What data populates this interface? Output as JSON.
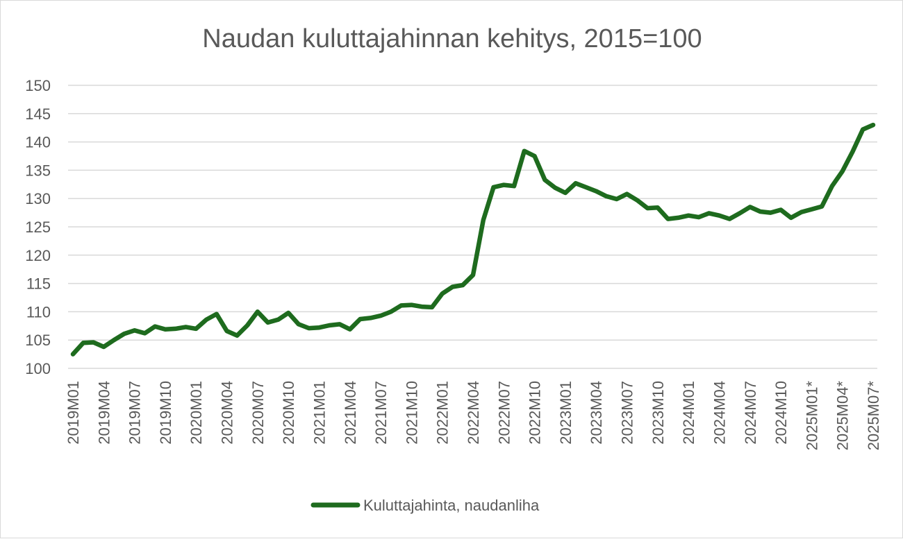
{
  "chart_data": {
    "type": "line",
    "title": "Naudan kuluttajahinnan kehitys, 2015=100",
    "xlabel": "",
    "ylabel": "",
    "ylim": [
      100,
      150
    ],
    "yticks": [
      100,
      105,
      110,
      115,
      120,
      125,
      130,
      135,
      140,
      145,
      150
    ],
    "grid": true,
    "legend_position": "bottom",
    "x": [
      "2019M01",
      "2019M02",
      "2019M03",
      "2019M04",
      "2019M05",
      "2019M06",
      "2019M07",
      "2019M08",
      "2019M09",
      "2019M10",
      "2019M11",
      "2019M12",
      "2020M01",
      "2020M02",
      "2020M03",
      "2020M04",
      "2020M05",
      "2020M06",
      "2020M07",
      "2020M08",
      "2020M09",
      "2020M10",
      "2020M11",
      "2020M12",
      "2021M01",
      "2021M02",
      "2021M03",
      "2021M04",
      "2021M05",
      "2021M06",
      "2021M07",
      "2021M08",
      "2021M09",
      "2021M10",
      "2021M11",
      "2021M12",
      "2022M01",
      "2022M02",
      "2022M03",
      "2022M04",
      "2022M05",
      "2022M06",
      "2022M07",
      "2022M08",
      "2022M09",
      "2022M10",
      "2022M11",
      "2022M12",
      "2023M01",
      "2023M02",
      "2023M03",
      "2023M04",
      "2023M05",
      "2023M06",
      "2023M07",
      "2023M08",
      "2023M09",
      "2023M10",
      "2023M11",
      "2023M12",
      "2024M01",
      "2024M02",
      "2024M03",
      "2024M04",
      "2024M05",
      "2024M06",
      "2024M07",
      "2024M08",
      "2024M09",
      "2024M10",
      "2024M11",
      "2024M12",
      "2025M01*",
      "2025M02*",
      "2025M03*",
      "2025M04*",
      "2025M05*",
      "2025M06*",
      "2025M07*"
    ],
    "xtick_labels": [
      "2019M01",
      "2019M04",
      "2019M07",
      "2019M10",
      "2020M01",
      "2020M04",
      "2020M07",
      "2020M10",
      "2021M01",
      "2021M04",
      "2021M07",
      "2021M10",
      "2022M01",
      "2022M04",
      "2022M07",
      "2022M10",
      "2023M01",
      "2023M04",
      "2023M07",
      "2023M10",
      "2024M01",
      "2024M04",
      "2024M07",
      "2024M10",
      "2025M01*",
      "2025M04*",
      "2025M07*"
    ],
    "series": [
      {
        "name": "Kuluttajahinta, naudanliha",
        "color": "#1e6b1e",
        "values": [
          102.5,
          104.5,
          104.6,
          103.8,
          105.0,
          106.1,
          106.7,
          106.2,
          107.4,
          106.9,
          107.0,
          107.3,
          107.0,
          108.6,
          109.6,
          106.6,
          105.8,
          107.6,
          110.0,
          108.1,
          108.6,
          109.8,
          107.8,
          107.1,
          107.2,
          107.6,
          107.8,
          106.9,
          108.7,
          108.9,
          109.3,
          110.0,
          111.1,
          111.2,
          110.9,
          110.8,
          113.2,
          114.4,
          114.7,
          116.5,
          126.2,
          132.0,
          132.4,
          132.2,
          138.4,
          137.5,
          133.3,
          131.9,
          131.0,
          132.7,
          132.0,
          131.3,
          130.4,
          129.9,
          130.8,
          129.7,
          128.3,
          128.4,
          126.4,
          126.6,
          127.0,
          126.7,
          127.4,
          127.0,
          126.4,
          127.4,
          128.5,
          127.7,
          127.5,
          128.0,
          126.6,
          127.6,
          128.1,
          128.6,
          132.2,
          134.8,
          138.3,
          142.2,
          143.0
        ]
      }
    ]
  }
}
